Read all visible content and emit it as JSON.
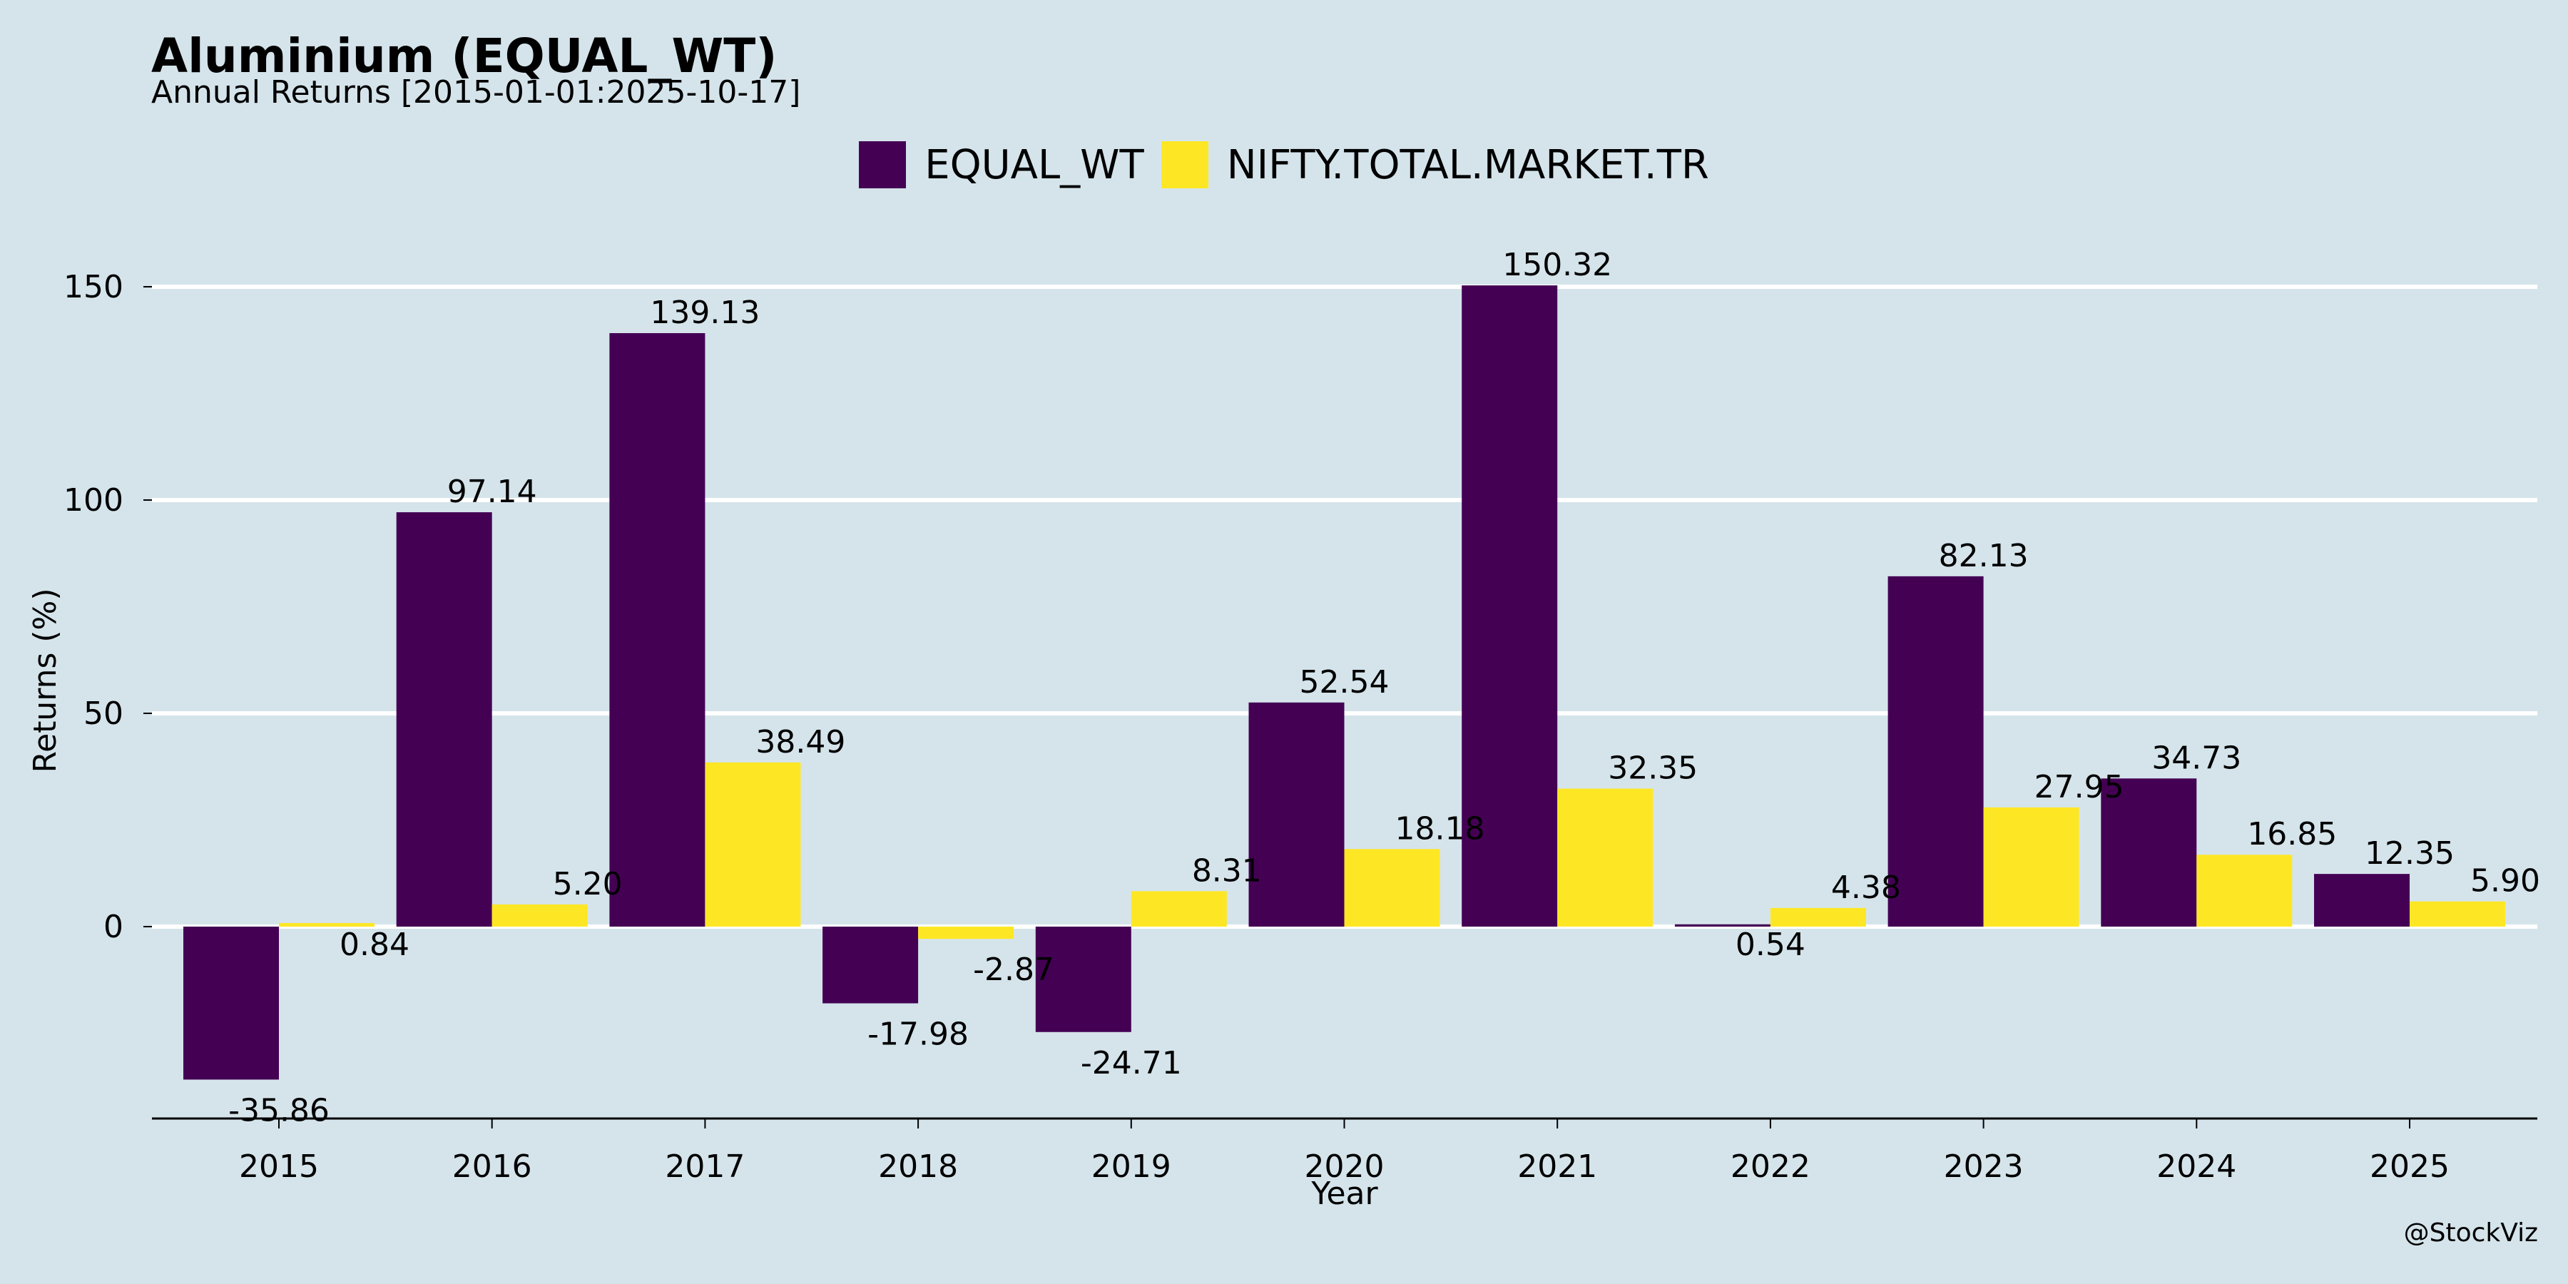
{
  "header": {
    "title": "Aluminium (EQUAL_WT)",
    "subtitle": "Annual Returns [2015-01-01:2025-10-17]",
    "watermark": "@StockViz"
  },
  "chart_data": {
    "type": "bar",
    "title": "Aluminium (EQUAL_WT)",
    "subtitle": "Annual Returns [2015-01-01:2025-10-17]",
    "xlabel": "Year",
    "ylabel": "Returns (%)",
    "categories": [
      "2015",
      "2016",
      "2017",
      "2018",
      "2019",
      "2020",
      "2021",
      "2022",
      "2023",
      "2024",
      "2025"
    ],
    "series": [
      {
        "name": "EQUAL_WT",
        "color": "#440154",
        "values": [
          -35.86,
          97.14,
          139.13,
          -17.98,
          -24.71,
          52.54,
          150.32,
          0.54,
          82.13,
          34.73,
          12.35
        ]
      },
      {
        "name": "NIFTY.TOTAL.MARKET.TR",
        "color": "#fde725",
        "values": [
          0.84,
          5.2,
          38.49,
          -2.87,
          8.31,
          18.18,
          32.35,
          4.38,
          27.95,
          16.85,
          5.9
        ]
      }
    ],
    "yticks": [
      0,
      50,
      100,
      150
    ],
    "ylim": [
      -45,
      165
    ],
    "grid": "horizontal",
    "legend_position": "top-center",
    "background": "#d5e4eb"
  }
}
